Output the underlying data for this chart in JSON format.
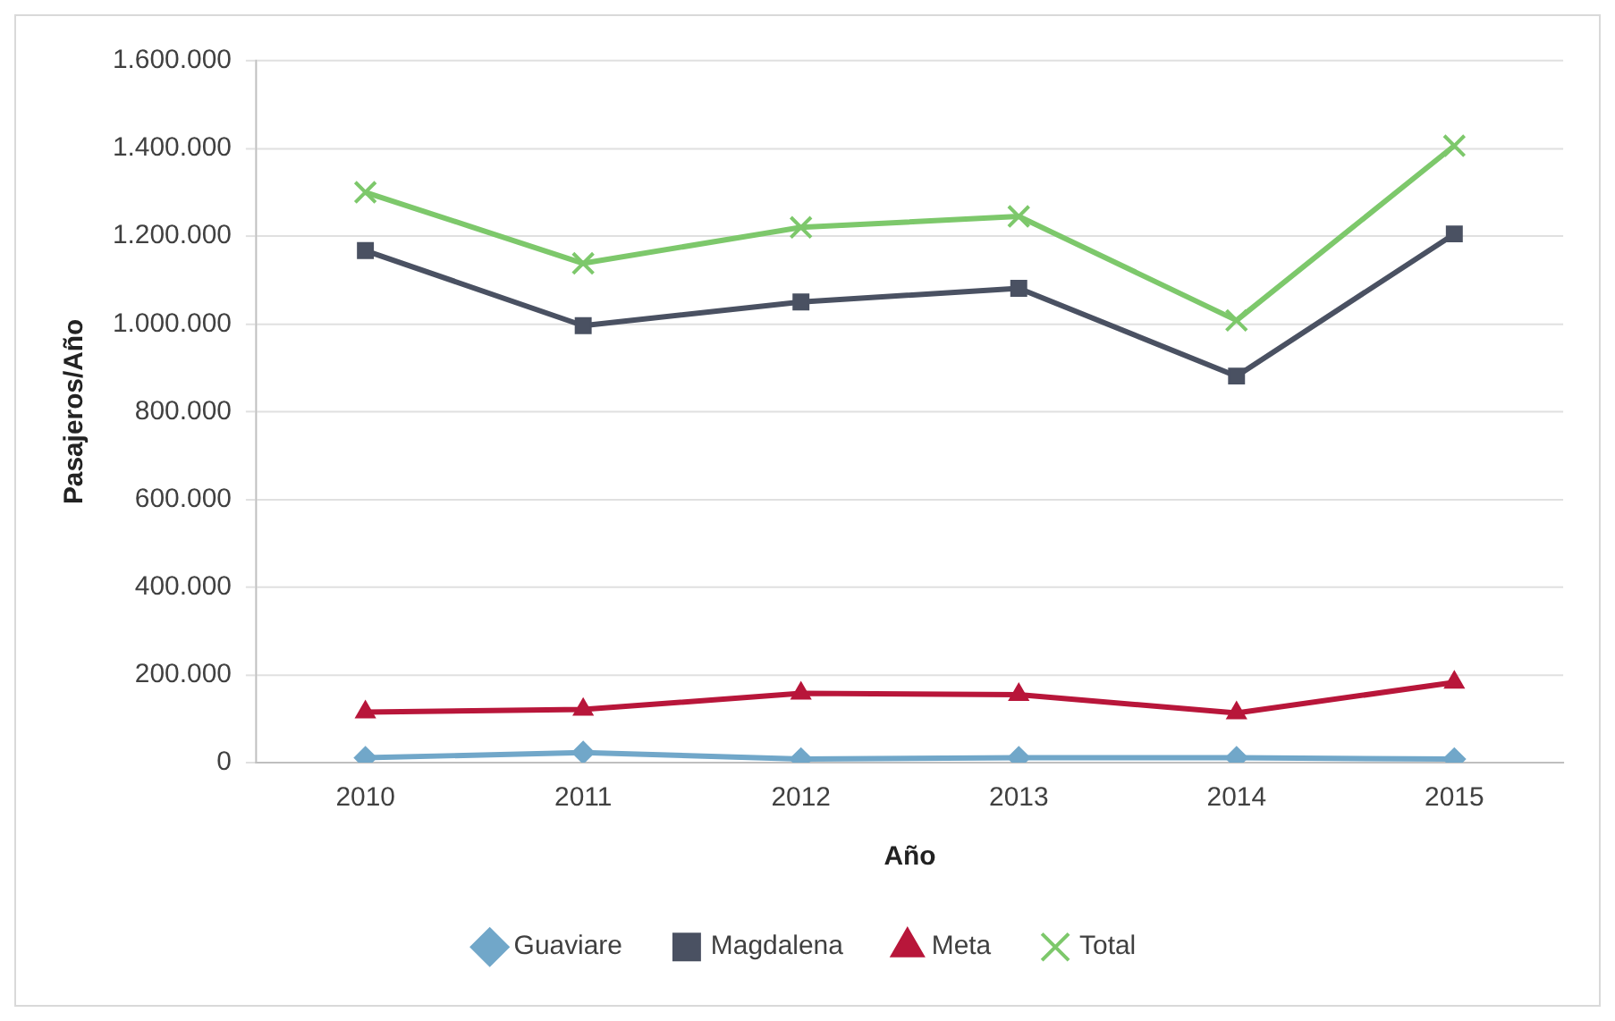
{
  "chart_data": {
    "type": "line",
    "xlabel": "Año",
    "ylabel": "Pasajeros/Año",
    "categories": [
      "2010",
      "2011",
      "2012",
      "2013",
      "2014",
      "2015"
    ],
    "series": [
      {
        "name": "Guaviare",
        "color": "#71a7c9",
        "marker": "diamond",
        "values": [
          11000,
          23000,
          8000,
          11000,
          11000,
          8000
        ]
      },
      {
        "name": "Magdalena",
        "color": "#4a5162",
        "marker": "square",
        "values": [
          1167000,
          996000,
          1050000,
          1081000,
          881000,
          1205000
        ]
      },
      {
        "name": "Meta",
        "color": "#b8163a",
        "marker": "triangle",
        "values": [
          115000,
          121000,
          158000,
          155000,
          113000,
          183000
        ]
      },
      {
        "name": "Total",
        "color": "#7dc86b",
        "marker": "cross",
        "values": [
          1300000,
          1138000,
          1220000,
          1245000,
          1008000,
          1406000
        ]
      }
    ],
    "ylim": [
      0,
      1600000
    ],
    "yticks": [
      0,
      {
        "value": 200000,
        "label": "200.000"
      },
      {
        "value": 400000,
        "label": "400.000"
      },
      {
        "value": 600000,
        "label": "600.000"
      },
      {
        "value": 800000,
        "label": "800.000"
      },
      {
        "value": 1000000,
        "label": "1.000.000"
      },
      {
        "value": 1200000,
        "label": "1.200.000"
      },
      {
        "value": 1400000,
        "label": "1.400.000"
      },
      {
        "value": 1600000,
        "label": "1.600.000"
      }
    ],
    "grid": "y",
    "legend": "bottom",
    "line_style": "solid"
  }
}
